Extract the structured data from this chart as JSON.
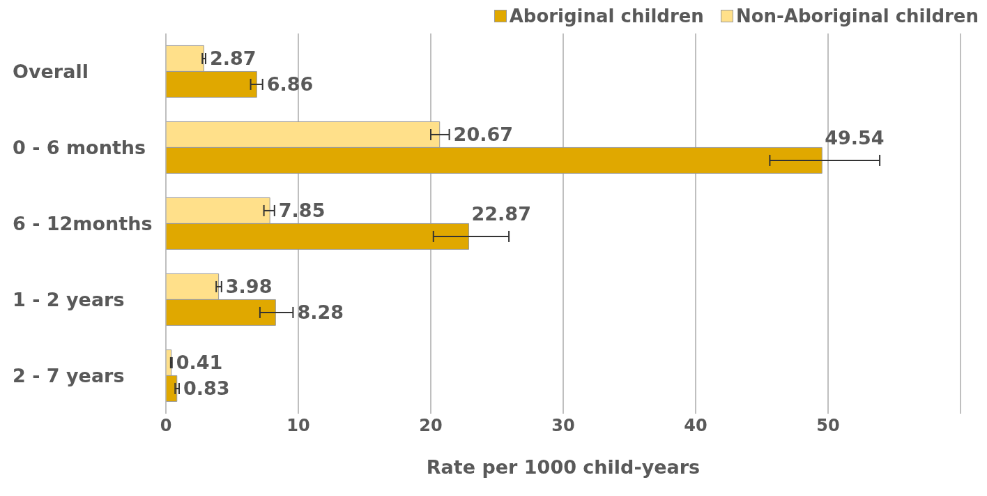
{
  "chart_data": {
    "type": "bar",
    "orientation": "horizontal",
    "xlabel": "Rate per 1000 child-years",
    "categories": [
      "Overall",
      "0 - 6 months",
      "6 - 12months",
      "1 - 2 years",
      "2 - 7 years"
    ],
    "series": [
      {
        "name": "Aboriginal children",
        "color": "#e0a800",
        "values": [
          6.86,
          49.54,
          22.87,
          8.28,
          0.83
        ],
        "errors": [
          [
            6.4,
            7.3
          ],
          [
            45.6,
            53.9
          ],
          [
            20.2,
            25.9
          ],
          [
            7.1,
            9.6
          ],
          [
            0.7,
            1.0
          ]
        ]
      },
      {
        "name": "Non-Aboriginal children",
        "color": "#ffe08a",
        "values": [
          2.87,
          20.67,
          7.85,
          3.98,
          0.41
        ],
        "errors": [
          [
            2.75,
            3.0
          ],
          [
            20.0,
            21.4
          ],
          [
            7.4,
            8.2
          ],
          [
            3.8,
            4.2
          ],
          [
            0.36,
            0.46
          ]
        ]
      }
    ],
    "xlim": [
      0,
      60
    ],
    "xticks": [
      0,
      10,
      20,
      30,
      40,
      50,
      {
        "value": 60,
        "label": null
      }
    ],
    "grid": "x",
    "legend": "top right",
    "data_labels": true
  }
}
